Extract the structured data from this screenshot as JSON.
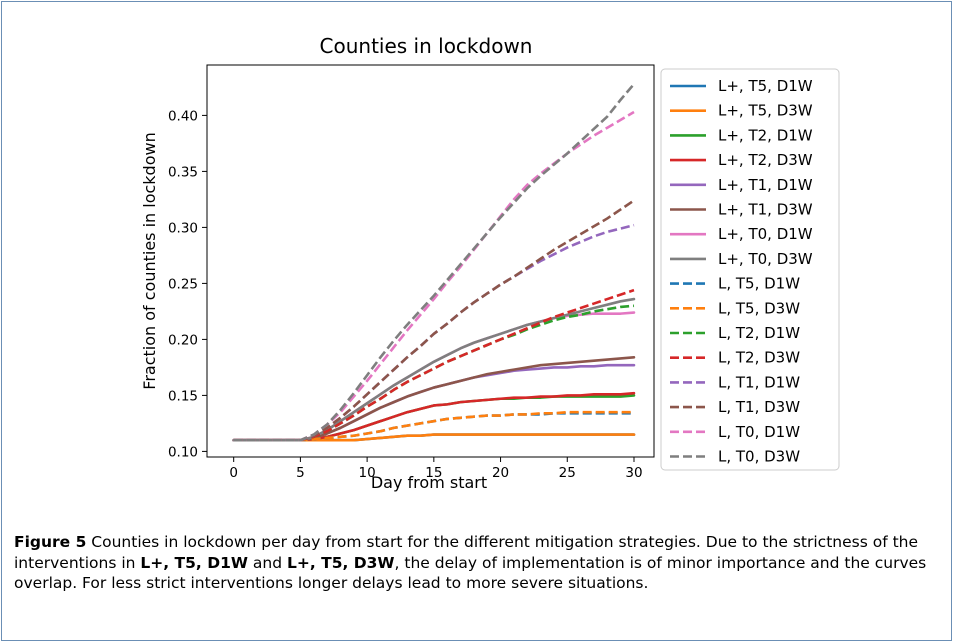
{
  "chart_data": {
    "type": "line",
    "title": "Counties in lockdown",
    "xlabel": "Day from start",
    "ylabel": "Fraction of counties in lockdown",
    "xlim": [
      -2,
      31.5
    ],
    "ylim": [
      0.095,
      0.445
    ],
    "xticks": [
      0,
      5,
      10,
      15,
      20,
      25,
      30
    ],
    "xtick_labels": [
      "0",
      "5",
      "10",
      "15",
      "20",
      "25",
      "30"
    ],
    "yticks": [
      0.1,
      0.15,
      0.2,
      0.25,
      0.3,
      0.35,
      0.4
    ],
    "ytick_labels": [
      "0.10",
      "0.15",
      "0.20",
      "0.25",
      "0.30",
      "0.35",
      "0.40"
    ],
    "grid": false,
    "legend_position": "outside-right",
    "x": [
      0,
      5,
      6,
      7,
      8,
      9,
      10,
      11,
      12,
      13,
      14,
      15,
      16,
      17,
      18,
      19,
      20,
      21,
      22,
      23,
      24,
      25,
      26,
      27,
      28,
      29,
      30
    ],
    "series": [
      {
        "name": "L+, T5, D1W",
        "color": "#1f77b4",
        "dash": false,
        "values": [
          0.11,
          0.11,
          0.11,
          0.11,
          0.11,
          0.11,
          0.111,
          0.112,
          0.113,
          0.114,
          0.114,
          0.115,
          0.115,
          0.115,
          0.115,
          0.115,
          0.115,
          0.115,
          0.115,
          0.115,
          0.115,
          0.115,
          0.115,
          0.115,
          0.115,
          0.115,
          0.115
        ]
      },
      {
        "name": "L+, T5, D3W",
        "color": "#ff7f0e",
        "dash": false,
        "values": [
          0.11,
          0.11,
          0.11,
          0.11,
          0.11,
          0.11,
          0.111,
          0.112,
          0.113,
          0.114,
          0.114,
          0.115,
          0.115,
          0.115,
          0.115,
          0.115,
          0.115,
          0.115,
          0.115,
          0.115,
          0.115,
          0.115,
          0.115,
          0.115,
          0.115,
          0.115,
          0.115
        ]
      },
      {
        "name": "L+, T2, D1W",
        "color": "#2ca02c",
        "dash": false,
        "values": [
          0.11,
          0.11,
          0.111,
          0.113,
          0.116,
          0.119,
          0.123,
          0.127,
          0.131,
          0.135,
          0.138,
          0.141,
          0.142,
          0.144,
          0.145,
          0.146,
          0.147,
          0.147,
          0.148,
          0.148,
          0.149,
          0.149,
          0.149,
          0.149,
          0.149,
          0.149,
          0.15
        ]
      },
      {
        "name": "L+, T2, D3W",
        "color": "#d62728",
        "dash": false,
        "values": [
          0.11,
          0.11,
          0.111,
          0.113,
          0.116,
          0.119,
          0.123,
          0.127,
          0.131,
          0.135,
          0.138,
          0.141,
          0.142,
          0.144,
          0.145,
          0.146,
          0.147,
          0.148,
          0.148,
          0.149,
          0.149,
          0.15,
          0.15,
          0.151,
          0.151,
          0.151,
          0.152
        ]
      },
      {
        "name": "L+, T1, D1W",
        "color": "#9467bd",
        "dash": false,
        "values": [
          0.11,
          0.11,
          0.112,
          0.116,
          0.121,
          0.127,
          0.133,
          0.139,
          0.144,
          0.149,
          0.153,
          0.157,
          0.16,
          0.163,
          0.166,
          0.168,
          0.17,
          0.172,
          0.173,
          0.174,
          0.175,
          0.175,
          0.176,
          0.176,
          0.177,
          0.177,
          0.177
        ]
      },
      {
        "name": "L+, T1, D3W",
        "color": "#8c564b",
        "dash": false,
        "values": [
          0.11,
          0.11,
          0.112,
          0.116,
          0.121,
          0.127,
          0.133,
          0.139,
          0.144,
          0.149,
          0.153,
          0.157,
          0.16,
          0.163,
          0.166,
          0.169,
          0.171,
          0.173,
          0.175,
          0.177,
          0.178,
          0.179,
          0.18,
          0.181,
          0.182,
          0.183,
          0.184
        ]
      },
      {
        "name": "L+, T0, D1W",
        "color": "#e377c2",
        "dash": false,
        "values": [
          0.11,
          0.11,
          0.113,
          0.119,
          0.127,
          0.135,
          0.143,
          0.151,
          0.159,
          0.166,
          0.173,
          0.18,
          0.186,
          0.192,
          0.197,
          0.201,
          0.205,
          0.209,
          0.213,
          0.216,
          0.219,
          0.221,
          0.222,
          0.223,
          0.223,
          0.223,
          0.224
        ]
      },
      {
        "name": "L+, T0, D3W",
        "color": "#7f7f7f",
        "dash": false,
        "values": [
          0.11,
          0.11,
          0.113,
          0.119,
          0.127,
          0.135,
          0.143,
          0.151,
          0.159,
          0.166,
          0.173,
          0.18,
          0.186,
          0.192,
          0.197,
          0.201,
          0.205,
          0.209,
          0.213,
          0.216,
          0.219,
          0.222,
          0.225,
          0.228,
          0.231,
          0.234,
          0.236
        ]
      },
      {
        "name": "L, T5, D1W",
        "color": "#1f77b4",
        "dash": true,
        "values": [
          0.11,
          0.11,
          0.111,
          0.112,
          0.113,
          0.114,
          0.116,
          0.118,
          0.121,
          0.123,
          0.125,
          0.127,
          0.129,
          0.13,
          0.131,
          0.132,
          0.132,
          0.133,
          0.133,
          0.133,
          0.134,
          0.134,
          0.134,
          0.134,
          0.134,
          0.134,
          0.134
        ]
      },
      {
        "name": "L, T5, D3W",
        "color": "#ff7f0e",
        "dash": true,
        "values": [
          0.11,
          0.11,
          0.111,
          0.112,
          0.113,
          0.114,
          0.116,
          0.118,
          0.121,
          0.123,
          0.125,
          0.127,
          0.129,
          0.13,
          0.131,
          0.132,
          0.132,
          0.133,
          0.133,
          0.134,
          0.134,
          0.135,
          0.135,
          0.135,
          0.135,
          0.135,
          0.135
        ]
      },
      {
        "name": "L, T2, D1W",
        "color": "#2ca02c",
        "dash": true,
        "values": [
          0.11,
          0.11,
          0.113,
          0.118,
          0.125,
          0.132,
          0.14,
          0.147,
          0.155,
          0.162,
          0.168,
          0.174,
          0.18,
          0.185,
          0.19,
          0.195,
          0.2,
          0.204,
          0.209,
          0.213,
          0.217,
          0.22,
          0.222,
          0.225,
          0.227,
          0.229,
          0.23
        ]
      },
      {
        "name": "L, T2, D3W",
        "color": "#d62728",
        "dash": true,
        "values": [
          0.11,
          0.11,
          0.113,
          0.118,
          0.125,
          0.132,
          0.14,
          0.147,
          0.155,
          0.162,
          0.168,
          0.174,
          0.18,
          0.185,
          0.19,
          0.195,
          0.2,
          0.205,
          0.21,
          0.215,
          0.22,
          0.224,
          0.228,
          0.232,
          0.236,
          0.24,
          0.244
        ]
      },
      {
        "name": "L, T1, D1W",
        "color": "#9467bd",
        "dash": true,
        "values": [
          0.11,
          0.11,
          0.114,
          0.121,
          0.13,
          0.14,
          0.151,
          0.162,
          0.173,
          0.184,
          0.194,
          0.205,
          0.214,
          0.224,
          0.233,
          0.241,
          0.249,
          0.256,
          0.263,
          0.27,
          0.276,
          0.282,
          0.287,
          0.292,
          0.296,
          0.299,
          0.302
        ]
      },
      {
        "name": "L, T1, D3W",
        "color": "#8c564b",
        "dash": true,
        "values": [
          0.11,
          0.11,
          0.114,
          0.121,
          0.13,
          0.14,
          0.151,
          0.162,
          0.173,
          0.184,
          0.194,
          0.205,
          0.214,
          0.224,
          0.233,
          0.241,
          0.249,
          0.256,
          0.264,
          0.272,
          0.28,
          0.287,
          0.294,
          0.301,
          0.308,
          0.316,
          0.324
        ]
      },
      {
        "name": "L, T0, D1W",
        "color": "#e377c2",
        "dash": true,
        "values": [
          0.11,
          0.11,
          0.115,
          0.124,
          0.135,
          0.149,
          0.163,
          0.178,
          0.193,
          0.208,
          0.222,
          0.236,
          0.251,
          0.265,
          0.28,
          0.295,
          0.31,
          0.325,
          0.338,
          0.348,
          0.357,
          0.366,
          0.374,
          0.382,
          0.389,
          0.396,
          0.403
        ]
      },
      {
        "name": "L, T0, D3W",
        "color": "#7f7f7f",
        "dash": true,
        "values": [
          0.11,
          0.11,
          0.115,
          0.124,
          0.137,
          0.152,
          0.168,
          0.184,
          0.199,
          0.213,
          0.226,
          0.239,
          0.253,
          0.267,
          0.281,
          0.295,
          0.309,
          0.322,
          0.335,
          0.346,
          0.356,
          0.366,
          0.377,
          0.388,
          0.399,
          0.414,
          0.428
        ]
      }
    ]
  },
  "caption": {
    "label": "Figure 5",
    "text_1": " Counties in lockdown per day from start for the different mitigation strategies. Due to the strictness of the interventions in ",
    "bold_1": "L+, T5, D1W",
    "text_2": " and ",
    "bold_2": "L+, T5, D3W",
    "text_3": ", the delay of implementation is of minor importance and the curves overlap. For less strict interventions longer delays lead to more severe situations."
  }
}
